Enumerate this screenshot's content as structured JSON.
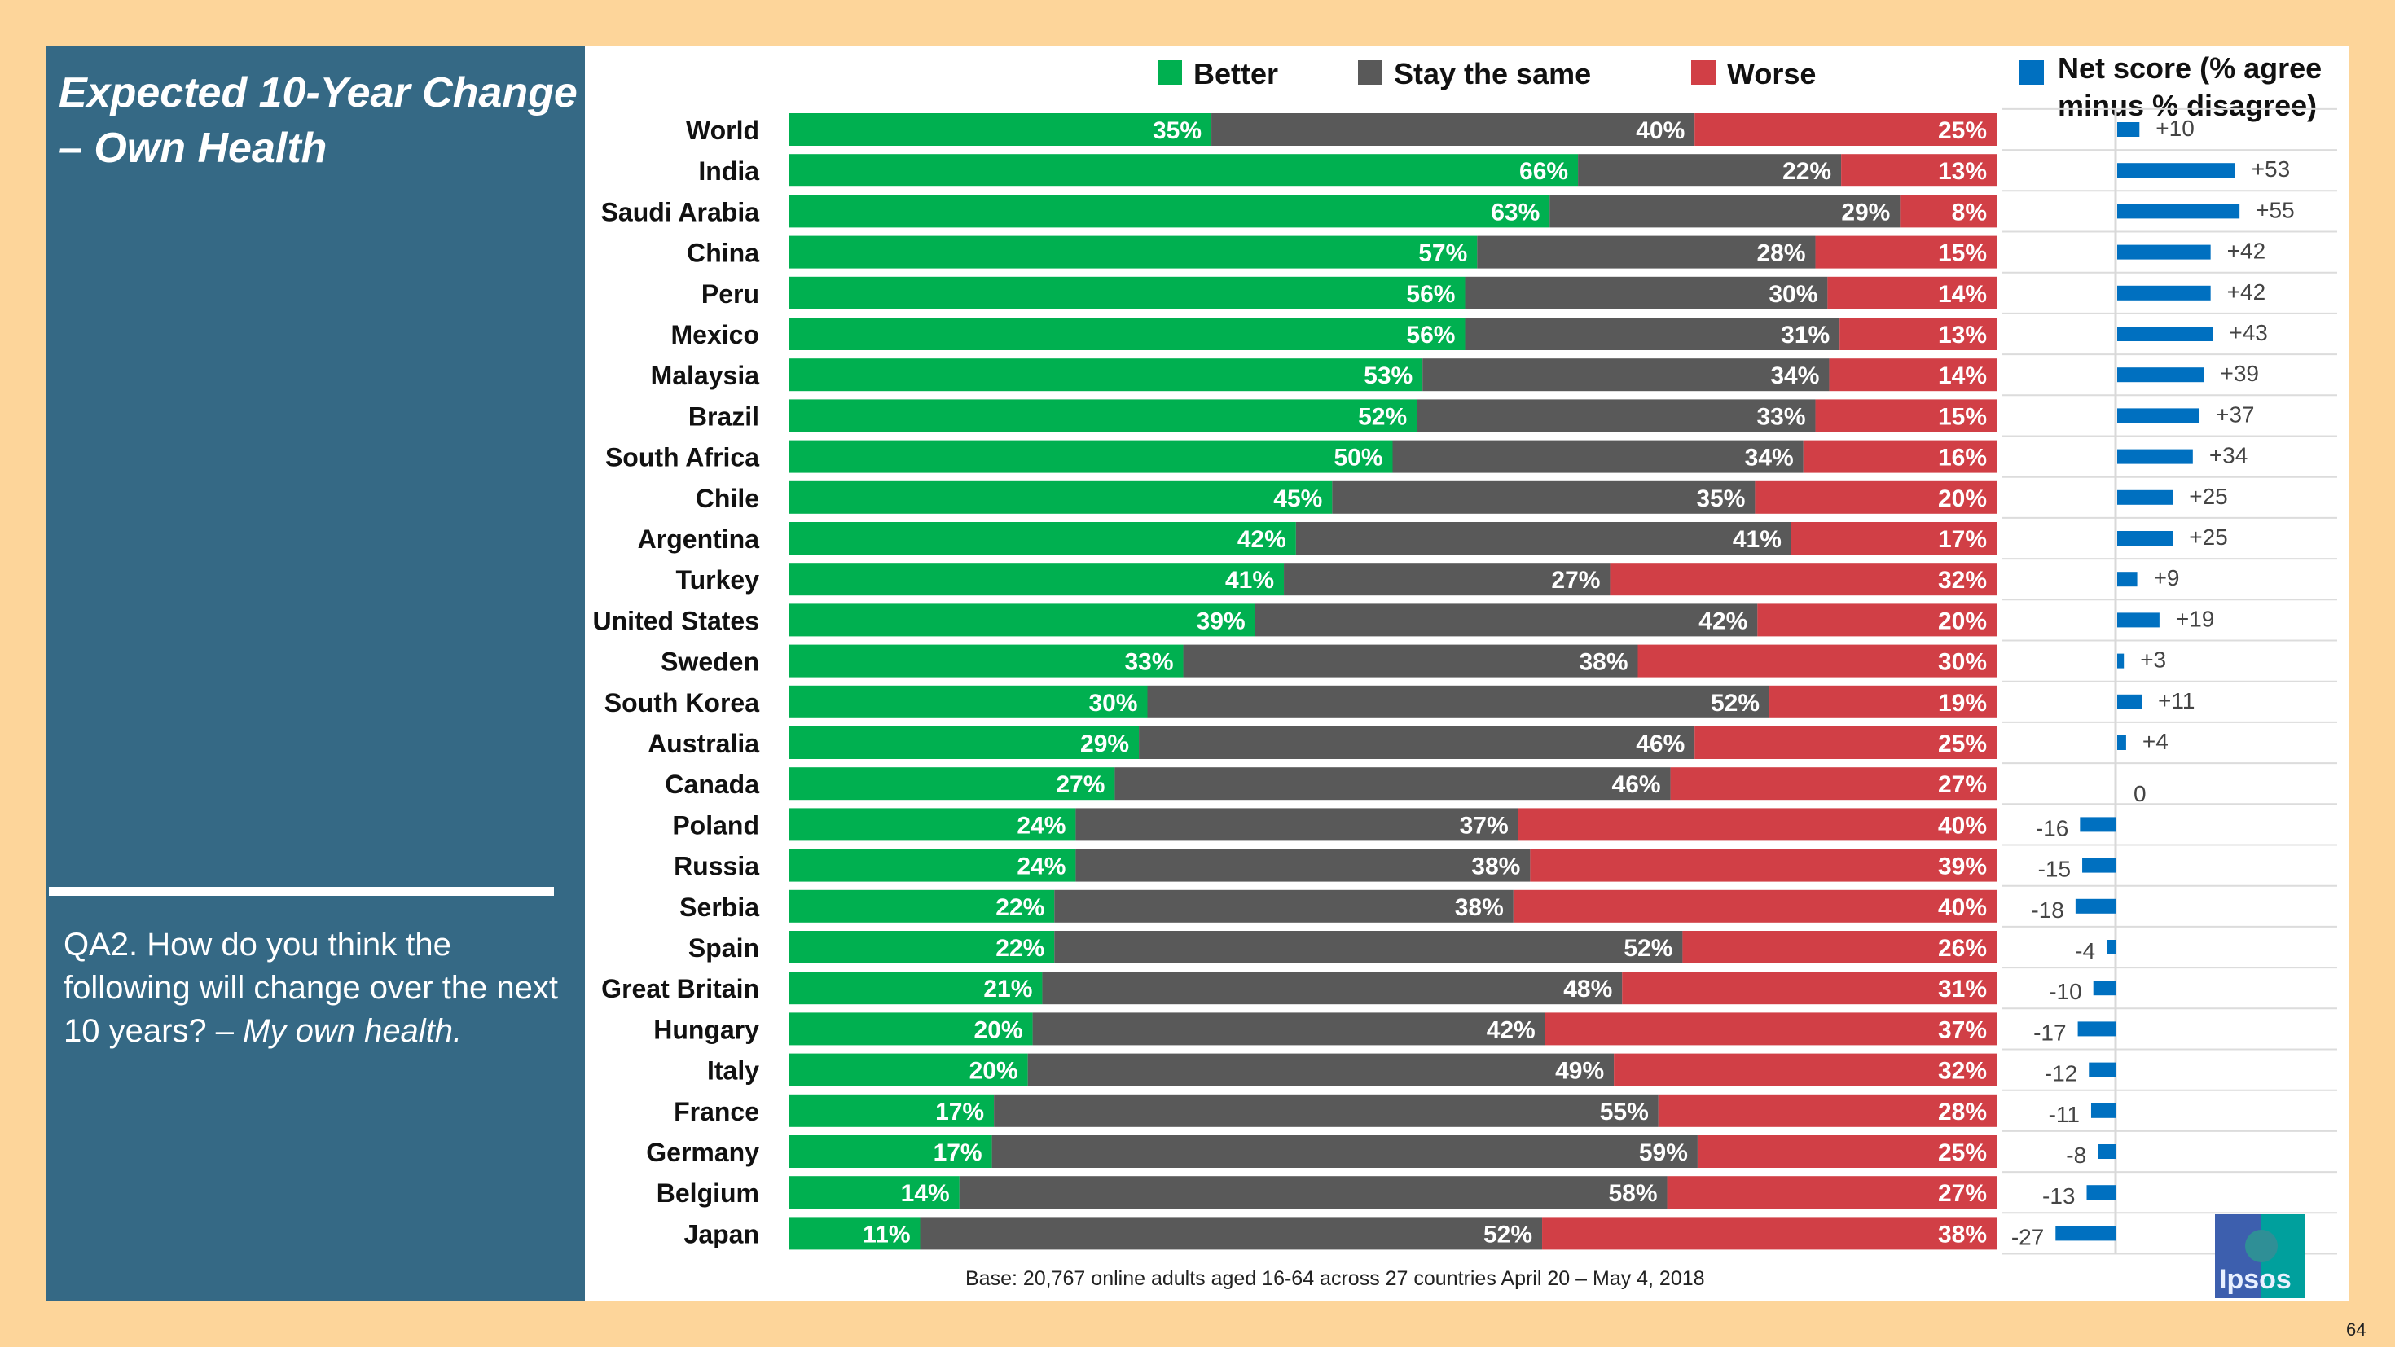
{
  "left_panel": {
    "title": "Expected 10-Year Change – Own Health",
    "question_prefix": "QA2. How do you think the following will change over the next 10 years? – ",
    "question_emphasis": "My own health."
  },
  "footnote": "Base: 20,767 online adults aged 16-64 across 27 countries  April 20 – May 4, 2018",
  "page_number": "64",
  "logo": "Ipsos",
  "colors": {
    "better": "#00b050",
    "same": "#595959",
    "worse": "#d13f46",
    "net": "#0070c0",
    "panel": "#356985",
    "background": "#fdd59a"
  },
  "chart_data": [
    {
      "type": "bar",
      "stacked": true,
      "orientation": "horizontal",
      "legend_position": "top",
      "categories": [
        "World",
        "India",
        "Saudi Arabia",
        "China",
        "Peru",
        "Mexico",
        "Malaysia",
        "Brazil",
        "South Africa",
        "Chile",
        "Argentina",
        "Turkey",
        "United States",
        "Sweden",
        "South Korea",
        "Australia",
        "Canada",
        "Poland",
        "Russia",
        "Serbia",
        "Spain",
        "Great Britain",
        "Hungary",
        "Italy",
        "France",
        "Germany",
        "Belgium",
        "Japan"
      ],
      "series": [
        {
          "name": "Better",
          "values": [
            35,
            66,
            63,
            57,
            56,
            56,
            53,
            52,
            50,
            45,
            42,
            41,
            39,
            33,
            30,
            29,
            27,
            24,
            24,
            22,
            22,
            21,
            20,
            20,
            17,
            17,
            14,
            11
          ]
        },
        {
          "name": "Stay the same",
          "values": [
            40,
            22,
            29,
            28,
            30,
            31,
            34,
            33,
            34,
            35,
            41,
            27,
            42,
            38,
            52,
            46,
            46,
            37,
            38,
            38,
            52,
            48,
            42,
            49,
            55,
            59,
            58,
            52
          ]
        },
        {
          "name": "Worse",
          "values": [
            25,
            13,
            8,
            15,
            14,
            13,
            14,
            15,
            16,
            20,
            17,
            32,
            20,
            30,
            19,
            25,
            27,
            40,
            39,
            40,
            26,
            31,
            37,
            32,
            28,
            25,
            27,
            38
          ]
        }
      ],
      "value_suffix": "%"
    },
    {
      "type": "bar",
      "orientation": "horizontal",
      "legend_position": "top",
      "series": [
        {
          "name": "Net score (% agree minus % disagree)",
          "legend_line1": "Net score (% agree",
          "legend_line2": "minus % disagree)",
          "values": [
            10,
            53,
            55,
            42,
            42,
            43,
            39,
            37,
            34,
            25,
            25,
            9,
            19,
            3,
            11,
            4,
            0,
            -16,
            -15,
            -18,
            -4,
            -10,
            -17,
            -12,
            -11,
            -8,
            -13,
            -27
          ],
          "labels": [
            "+10",
            "+53",
            "+55",
            "+42",
            "+42",
            "+43",
            "+39",
            "+37",
            "+34",
            "+25",
            "+25",
            "+9",
            "+19",
            "+3",
            "+11",
            "+4",
            "0",
            "-16",
            "-15",
            "-18",
            "-4",
            "-10",
            "-17",
            "-12",
            "-11",
            "-8",
            "-13",
            "-27"
          ]
        }
      ]
    }
  ]
}
